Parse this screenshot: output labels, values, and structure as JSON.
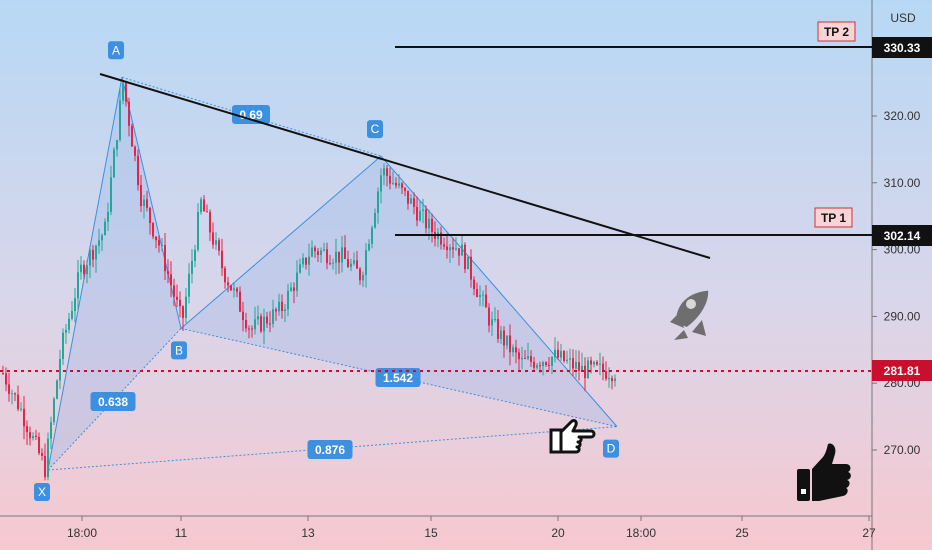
{
  "chart_data": {
    "type": "candlestick",
    "currency": "USD",
    "y_ticks": [
      "270.00",
      "280.00",
      "290.00",
      "300.00",
      "310.00",
      "320.00"
    ],
    "x_ticks": [
      "18:00",
      "11",
      "13",
      "15",
      "20",
      "18:00",
      "25",
      "27"
    ],
    "ylim": [
      263,
      334
    ],
    "pattern_points": [
      {
        "label": "X",
        "price": 267.0
      },
      {
        "label": "A",
        "price": 325.8
      },
      {
        "label": "B",
        "price": 288.2
      },
      {
        "label": "C",
        "price": 314.0
      },
      {
        "label": "D",
        "price": 273.5
      }
    ],
    "ratios": [
      {
        "label": "0.69"
      },
      {
        "label": "0.638"
      },
      {
        "label": "1.542"
      },
      {
        "label": "0.876"
      }
    ],
    "levels": [
      {
        "name": "TP 2",
        "price_label": "330.33",
        "price": 330.33
      },
      {
        "name": "TP 1",
        "price_label": "302.14",
        "price": 302.14
      }
    ],
    "current_price": {
      "label": "281.81",
      "value": 281.81
    },
    "colors": {
      "up": "#26a69a",
      "down": "#e0264a",
      "pattern_line": "#3d8fe0",
      "pattern_fill": "#9db8e8",
      "current_price": "#c8102e",
      "trendline": "#111111"
    },
    "icons": [
      "rocket-icon",
      "pointing-hand-icon",
      "thumbs-up-icon"
    ]
  }
}
